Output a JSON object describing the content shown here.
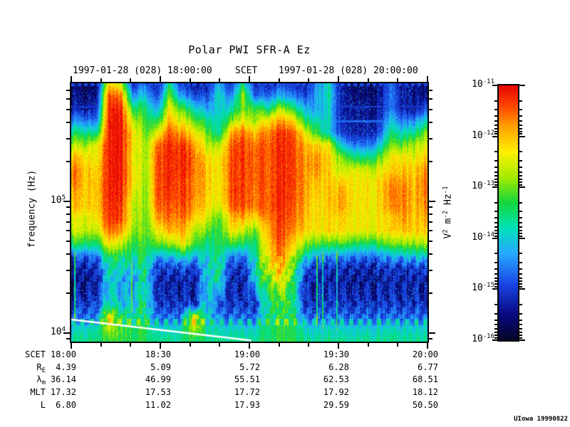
{
  "title": "Polar PWI SFR-A Ez",
  "header": {
    "left": "1997-01-28 (028) 18:00:00",
    "center": "SCET",
    "right": "1997-01-28 (028) 20:00:00"
  },
  "y_axis": {
    "label": "frequency (Hz)",
    "major_ticks": [
      {
        "base": "10",
        "exp": "5"
      },
      {
        "base": "10",
        "exp": "4"
      }
    ]
  },
  "colorbar": {
    "unit_segments": [
      {
        "t": "V",
        "sup": "2"
      },
      {
        "t": " m",
        "sup": "-2"
      },
      {
        "t": " Hz",
        "sup": "-1"
      }
    ],
    "tick_labels": [
      {
        "base": "10",
        "exp": "-11"
      },
      {
        "base": "10",
        "exp": "-12"
      },
      {
        "base": "10",
        "exp": "-13"
      },
      {
        "base": "10",
        "exp": "-14"
      },
      {
        "base": "10",
        "exp": "-15"
      },
      {
        "base": "10",
        "exp": "-16"
      }
    ],
    "top_color": "#e80000",
    "bottom_color": "#050528"
  },
  "footer_table": {
    "rows": [
      {
        "label": "SCET",
        "sub": "",
        "values": [
          "18:00",
          "18:30",
          "19:00",
          "19:30",
          "20:00"
        ]
      },
      {
        "label": "R",
        "sub": "E",
        "values": [
          "4.39",
          "5.09",
          "5.72",
          "6.28",
          "6.77"
        ]
      },
      {
        "label": "λ",
        "sub": "m",
        "values": [
          "36.14",
          "46.99",
          "55.51",
          "62.53",
          "68.51"
        ]
      },
      {
        "label": "MLT",
        "sub": "",
        "values": [
          "17.32",
          "17.53",
          "17.72",
          "17.92",
          "18.12"
        ]
      },
      {
        "label": "L",
        "sub": "",
        "values": [
          "6.80",
          "11.02",
          "17.93",
          "29.59",
          "50.50"
        ]
      }
    ]
  },
  "credit": "UIowa 19990822",
  "chart_data": {
    "type": "heatmap",
    "title": "Polar PWI SFR-A Ez",
    "x_label": "SCET",
    "x_ticks": [
      "18:00",
      "18:30",
      "19:00",
      "19:30",
      "20:00"
    ],
    "x_minor_tick_minutes": 10,
    "y_label": "frequency (Hz)",
    "y_scale": "log",
    "y_range_hz": [
      8500,
      790000
    ],
    "y_tick_labels_hz": [
      10000,
      100000
    ],
    "z_label": "V^2 m^-2 Hz^-1",
    "z_range": [
      1e-16,
      1e-11
    ],
    "colormap": "rainbow (dark blue -> blue -> cyan -> green -> yellow -> orange -> red)",
    "overlay_line": {
      "color": "#ffffff",
      "description": "white trace descending from left edge ~13 kHz at 18:00 to plot bottom near 19:00"
    },
    "grid_log10_power": {
      "cols": 30,
      "rows": 22,
      "note": "coarse 30x22 sampling of log10(spectral power), row 0 = top (high frequency), col 0 = 18:00",
      "values": [
        [
          -15.6,
          -15.8,
          -15.9,
          -12.2,
          -12.6,
          -15.2,
          -14.6,
          -15.4,
          -13.6,
          -15.2,
          -15.4,
          -15.5,
          -14.2,
          -15.2,
          -13.6,
          -15.3,
          -15.2,
          -15.0,
          -15.2,
          -15.4,
          -14.4,
          -13.9,
          -15.4,
          -15.6,
          -15.7,
          -15.6,
          -14.7,
          -15.4,
          -15.5,
          -15.6
        ],
        [
          -15.5,
          -15.6,
          -15.7,
          -11.4,
          -11.6,
          -14.4,
          -14.0,
          -15.0,
          -12.9,
          -14.4,
          -14.8,
          -15.0,
          -13.8,
          -14.6,
          -12.8,
          -14.8,
          -14.6,
          -14.2,
          -14.6,
          -15.0,
          -14.2,
          -13.8,
          -15.3,
          -15.5,
          -15.6,
          -15.5,
          -14.6,
          -15.3,
          -15.4,
          -15.5
        ],
        [
          -15.2,
          -15.4,
          -15.4,
          -11.2,
          -11.2,
          -13.4,
          -13.4,
          -14.4,
          -12.3,
          -13.2,
          -13.8,
          -14.4,
          -14.0,
          -13.8,
          -13.0,
          -13.2,
          -13.6,
          -12.8,
          -13.4,
          -14.2,
          -14.3,
          -13.9,
          -15.3,
          -15.4,
          -15.5,
          -15.4,
          -14.6,
          -15.3,
          -15.4,
          -14.8
        ],
        [
          -14.4,
          -14.6,
          -14.8,
          -11.1,
          -11.1,
          -12.6,
          -13.2,
          -13.4,
          -11.9,
          -12.5,
          -13.0,
          -13.6,
          -13.9,
          -13.0,
          -12.4,
          -12.8,
          -12.2,
          -11.8,
          -12.2,
          -13.4,
          -13.8,
          -13.9,
          -15.2,
          -15.3,
          -15.4,
          -15.3,
          -14.1,
          -14.6,
          -14.5,
          -13.8
        ],
        [
          -13.4,
          -13.6,
          -13.8,
          -11.1,
          -11.1,
          -12.2,
          -13.0,
          -12.5,
          -11.4,
          -11.8,
          -12.2,
          -13.0,
          -13.8,
          -11.9,
          -11.6,
          -12.0,
          -11.6,
          -11.3,
          -11.5,
          -12.4,
          -13.2,
          -14.0,
          -15.0,
          -15.2,
          -15.3,
          -15.0,
          -13.6,
          -13.8,
          -13.6,
          -12.8
        ],
        [
          -12.6,
          -12.8,
          -12.6,
          -11.1,
          -11.1,
          -12.2,
          -12.8,
          -11.6,
          -11.2,
          -11.3,
          -11.7,
          -12.6,
          -12.8,
          -11.5,
          -11.3,
          -11.6,
          -11.4,
          -11.2,
          -11.4,
          -11.9,
          -12.1,
          -12.4,
          -14.0,
          -14.5,
          -14.6,
          -14.2,
          -13.0,
          -13.0,
          -12.7,
          -12.4
        ],
        [
          -11.9,
          -12.2,
          -12.5,
          -11.1,
          -11.1,
          -12.3,
          -12.8,
          -11.4,
          -11.2,
          -11.2,
          -11.5,
          -12.2,
          -12.4,
          -11.4,
          -11.3,
          -11.5,
          -11.4,
          -11.2,
          -11.4,
          -11.8,
          -11.7,
          -12.2,
          -12.9,
          -13.4,
          -13.6,
          -13.2,
          -12.4,
          -12.2,
          -12.5,
          -12.0
        ],
        [
          -11.5,
          -12.0,
          -12.3,
          -11.1,
          -11.1,
          -12.2,
          -12.8,
          -11.4,
          -11.2,
          -11.2,
          -11.5,
          -12.0,
          -12.4,
          -11.4,
          -11.3,
          -11.5,
          -11.4,
          -11.2,
          -11.4,
          -11.8,
          -11.7,
          -12.2,
          -12.6,
          -12.4,
          -12.6,
          -12.5,
          -12.2,
          -12.0,
          -12.1,
          -11.6
        ],
        [
          -11.5,
          -12.0,
          -12.2,
          -11.1,
          -11.1,
          -12.2,
          -12.9,
          -11.4,
          -11.2,
          -11.3,
          -11.6,
          -12.0,
          -12.4,
          -11.4,
          -11.3,
          -11.5,
          -11.4,
          -11.2,
          -11.4,
          -11.8,
          -12.0,
          -12.1,
          -12.1,
          -12.2,
          -12.3,
          -12.2,
          -11.8,
          -11.7,
          -12.0,
          -11.5
        ],
        [
          -11.8,
          -12.1,
          -12.2,
          -11.1,
          -11.2,
          -12.4,
          -12.9,
          -11.4,
          -11.3,
          -11.3,
          -11.6,
          -12.1,
          -12.4,
          -11.4,
          -11.3,
          -11.6,
          -11.4,
          -11.2,
          -11.4,
          -11.8,
          -12.1,
          -12.1,
          -11.8,
          -12.2,
          -12.3,
          -12.2,
          -11.7,
          -11.6,
          -12.0,
          -11.5
        ],
        [
          -11.9,
          -12.1,
          -12.2,
          -11.2,
          -11.3,
          -12.6,
          -12.9,
          -11.5,
          -11.4,
          -11.4,
          -11.7,
          -12.2,
          -12.6,
          -11.5,
          -11.4,
          -11.6,
          -11.4,
          -11.2,
          -11.5,
          -11.9,
          -12.2,
          -12.1,
          -11.8,
          -12.2,
          -12.3,
          -12.2,
          -11.8,
          -11.6,
          -12.0,
          -11.6
        ],
        [
          -12.4,
          -12.5,
          -12.4,
          -11.2,
          -11.4,
          -12.6,
          -13.0,
          -11.8,
          -11.6,
          -11.6,
          -12.0,
          -12.5,
          -13.2,
          -12.0,
          -11.9,
          -12.2,
          -11.6,
          -11.3,
          -11.6,
          -12.0,
          -12.2,
          -12.2,
          -12.1,
          -12.3,
          -12.3,
          -12.3,
          -12.2,
          -11.7,
          -12.1,
          -11.8
        ],
        [
          -12.5,
          -12.6,
          -12.8,
          -11.5,
          -11.8,
          -12.8,
          -13.0,
          -12.4,
          -11.9,
          -11.9,
          -12.6,
          -13.0,
          -13.4,
          -12.3,
          -12.6,
          -13.0,
          -11.8,
          -11.3,
          -11.8,
          -12.1,
          -12.3,
          -12.2,
          -12.2,
          -12.3,
          -12.4,
          -12.3,
          -12.2,
          -12.0,
          -12.1,
          -12.0
        ],
        [
          -13.2,
          -13.4,
          -13.6,
          -12.2,
          -12.6,
          -13.2,
          -13.2,
          -13.0,
          -12.8,
          -12.3,
          -13.0,
          -13.6,
          -13.4,
          -13.2,
          -13.4,
          -13.5,
          -12.0,
          -11.4,
          -12.1,
          -12.8,
          -13.0,
          -13.2,
          -13.0,
          -13.2,
          -13.4,
          -13.2,
          -13.0,
          -12.8,
          -12.8,
          -12.6
        ],
        [
          -14.6,
          -14.6,
          -14.7,
          -13.2,
          -13.4,
          -13.6,
          -13.3,
          -14.2,
          -14.0,
          -13.6,
          -14.0,
          -13.9,
          -13.5,
          -14.4,
          -14.5,
          -13.6,
          -12.2,
          -11.5,
          -12.6,
          -13.6,
          -14.2,
          -14.4,
          -14.3,
          -14.4,
          -14.5,
          -14.4,
          -14.2,
          -14.0,
          -13.9,
          -13.8
        ],
        [
          -15.2,
          -15.2,
          -15.2,
          -13.6,
          -13.8,
          -14.0,
          -13.4,
          -15.0,
          -14.9,
          -14.8,
          -14.9,
          -14.0,
          -13.5,
          -15.0,
          -15.1,
          -13.7,
          -12.4,
          -11.8,
          -13.0,
          -14.6,
          -15.0,
          -15.1,
          -15.1,
          -15.1,
          -15.2,
          -15.1,
          -15.0,
          -15.0,
          -14.9,
          -14.8
        ],
        [
          -15.4,
          -15.4,
          -15.4,
          -13.8,
          -14.2,
          -14.3,
          -13.5,
          -15.2,
          -15.2,
          -15.2,
          -15.2,
          -14.0,
          -13.6,
          -15.2,
          -15.3,
          -13.8,
          -12.9,
          -12.2,
          -13.2,
          -15.0,
          -15.2,
          -15.3,
          -15.3,
          -15.3,
          -15.3,
          -15.3,
          -15.2,
          -15.2,
          -15.2,
          -15.2
        ],
        [
          -15.3,
          -15.3,
          -15.3,
          -13.8,
          -14.2,
          -14.2,
          -13.5,
          -15.2,
          -15.2,
          -15.2,
          -15.2,
          -14.0,
          -14.2,
          -15.2,
          -15.2,
          -14.4,
          -13.2,
          -12.8,
          -13.4,
          -15.1,
          -15.2,
          -15.2,
          -15.2,
          -15.2,
          -15.2,
          -15.2,
          -15.2,
          -15.2,
          -15.2,
          -15.2
        ],
        [
          -15.0,
          -15.0,
          -15.0,
          -13.6,
          -14.0,
          -14.0,
          -13.4,
          -15.0,
          -15.0,
          -15.0,
          -15.0,
          -13.9,
          -14.8,
          -15.0,
          -15.0,
          -15.0,
          -13.4,
          -13.2,
          -13.4,
          -15.0,
          -15.0,
          -15.0,
          -15.0,
          -15.0,
          -15.0,
          -15.0,
          -15.0,
          -15.0,
          -15.0,
          -15.0
        ],
        [
          -14.6,
          -14.6,
          -14.6,
          -12.2,
          -13.4,
          -13.6,
          -13.4,
          -14.6,
          -14.6,
          -14.4,
          -12.2,
          -13.8,
          -14.4,
          -14.6,
          -14.6,
          -14.6,
          -13.4,
          -13.3,
          -13.4,
          -14.6,
          -14.6,
          -14.6,
          -14.6,
          -14.6,
          -14.6,
          -14.6,
          -14.6,
          -14.6,
          -14.6,
          -14.6
        ],
        [
          -13.9,
          -13.9,
          -13.9,
          -12.6,
          -13.2,
          -13.4,
          -13.3,
          -13.9,
          -13.9,
          -13.8,
          -12.5,
          -13.7,
          -13.9,
          -13.9,
          -13.9,
          -13.9,
          -13.4,
          -13.3,
          -13.4,
          -13.9,
          -13.9,
          -13.9,
          -13.9,
          -13.9,
          -13.9,
          -13.9,
          -13.9,
          -13.9,
          -13.9,
          -13.9
        ],
        [
          -13.6,
          -13.6,
          -13.6,
          -13.2,
          -13.3,
          -13.4,
          -13.3,
          -13.6,
          -13.6,
          -13.6,
          -13.4,
          -13.6,
          -13.6,
          -13.6,
          -13.6,
          -13.6,
          -13.4,
          -13.3,
          -13.4,
          -13.6,
          -13.6,
          -13.6,
          -13.6,
          -13.6,
          -13.6,
          -13.6,
          -13.6,
          -13.6,
          -13.6,
          -13.6
        ]
      ]
    }
  }
}
